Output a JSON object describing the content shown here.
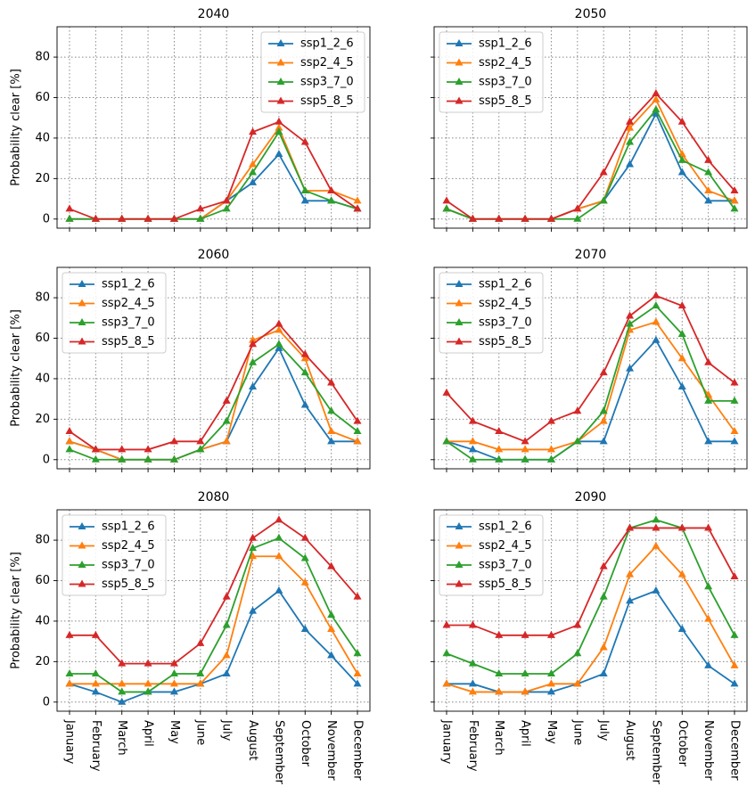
{
  "chart_data": [
    {
      "type": "line",
      "title": "2040",
      "ylabel": "Probability clear [%]",
      "legend": "upper right",
      "ylim": [
        -4.5,
        95
      ],
      "yticks": [
        0,
        20,
        40,
        60,
        80
      ],
      "grid": true,
      "series": [
        {
          "name": "ssp1_2_6",
          "color": "#1f77b4",
          "values": [
            0,
            0,
            0,
            0,
            0,
            0,
            9,
            18,
            32,
            9,
            9,
            5
          ]
        },
        {
          "name": "ssp2_4_5",
          "color": "#ff7f0e",
          "values": [
            0,
            0,
            0,
            0,
            0,
            0,
            9,
            27,
            45,
            14,
            14,
            9
          ]
        },
        {
          "name": "ssp3_7_0",
          "color": "#2ca02c",
          "values": [
            0,
            0,
            0,
            0,
            0,
            0,
            5,
            23,
            43,
            14,
            9,
            5
          ]
        },
        {
          "name": "ssp5_8_5",
          "color": "#d62728",
          "values": [
            5,
            0,
            0,
            0,
            0,
            5,
            9,
            43,
            48,
            38,
            14,
            5
          ]
        }
      ]
    },
    {
      "type": "line",
      "title": "2050",
      "legend": "upper left",
      "ylim": [
        -4.5,
        95
      ],
      "yticks": [
        0,
        20,
        40,
        60,
        80
      ],
      "grid": true,
      "series": [
        {
          "name": "ssp1_2_6",
          "color": "#1f77b4",
          "values": [
            5,
            0,
            0,
            0,
            0,
            5,
            9,
            27,
            52,
            23,
            9,
            9
          ]
        },
        {
          "name": "ssp2_4_5",
          "color": "#ff7f0e",
          "values": [
            5,
            0,
            0,
            0,
            0,
            5,
            9,
            45,
            59,
            32,
            14,
            9
          ]
        },
        {
          "name": "ssp3_7_0",
          "color": "#2ca02c",
          "values": [
            5,
            0,
            0,
            0,
            0,
            0,
            9,
            38,
            54,
            29,
            23,
            5
          ]
        },
        {
          "name": "ssp5_8_5",
          "color": "#d62728",
          "values": [
            9,
            0,
            0,
            0,
            0,
            5,
            23,
            48,
            62,
            48,
            29,
            14
          ]
        }
      ]
    },
    {
      "type": "line",
      "title": "2060",
      "ylabel": "Probability clear [%]",
      "legend": "upper left",
      "ylim": [
        -4.5,
        95
      ],
      "yticks": [
        0,
        20,
        40,
        60,
        80
      ],
      "grid": true,
      "series": [
        {
          "name": "ssp1_2_6",
          "color": "#1f77b4",
          "values": [
            9,
            5,
            0,
            0,
            0,
            5,
            9,
            36,
            55,
            27,
            9,
            9
          ]
        },
        {
          "name": "ssp2_4_5",
          "color": "#ff7f0e",
          "values": [
            9,
            5,
            0,
            0,
            0,
            5,
            9,
            59,
            64,
            50,
            14,
            9
          ]
        },
        {
          "name": "ssp3_7_0",
          "color": "#2ca02c",
          "values": [
            5,
            0,
            0,
            0,
            0,
            5,
            19,
            48,
            57,
            43,
            24,
            14
          ]
        },
        {
          "name": "ssp5_8_5",
          "color": "#d62728",
          "values": [
            14,
            5,
            5,
            5,
            9,
            9,
            29,
            57,
            67,
            52,
            38,
            19
          ]
        }
      ]
    },
    {
      "type": "line",
      "title": "2070",
      "legend": "upper left",
      "ylim": [
        -4.5,
        95
      ],
      "yticks": [
        0,
        20,
        40,
        60,
        80
      ],
      "grid": true,
      "series": [
        {
          "name": "ssp1_2_6",
          "color": "#1f77b4",
          "values": [
            9,
            5,
            0,
            0,
            0,
            9,
            9,
            45,
            59,
            36,
            9,
            9
          ]
        },
        {
          "name": "ssp2_4_5",
          "color": "#ff7f0e",
          "values": [
            9,
            9,
            5,
            5,
            5,
            9,
            19,
            64,
            68,
            50,
            32,
            14
          ]
        },
        {
          "name": "ssp3_7_0",
          "color": "#2ca02c",
          "values": [
            9,
            0,
            0,
            0,
            0,
            9,
            24,
            67,
            76,
            62,
            29,
            29
          ]
        },
        {
          "name": "ssp5_8_5",
          "color": "#d62728",
          "values": [
            33,
            19,
            14,
            9,
            19,
            24,
            43,
            71,
            81,
            76,
            48,
            38
          ]
        }
      ]
    },
    {
      "type": "line",
      "title": "2080",
      "ylabel": "Probability clear [%]",
      "legend": "upper left",
      "categories": [
        "January",
        "February",
        "March",
        "April",
        "May",
        "June",
        "July",
        "August",
        "September",
        "October",
        "November",
        "December"
      ],
      "ylim": [
        -4.5,
        95
      ],
      "yticks": [
        0,
        20,
        40,
        60,
        80
      ],
      "grid": true,
      "series": [
        {
          "name": "ssp1_2_6",
          "color": "#1f77b4",
          "values": [
            9,
            5,
            0,
            5,
            5,
            9,
            14,
            45,
            55,
            36,
            23,
            9
          ]
        },
        {
          "name": "ssp2_4_5",
          "color": "#ff7f0e",
          "values": [
            9,
            9,
            9,
            9,
            9,
            9,
            23,
            72,
            72,
            59,
            36,
            14
          ]
        },
        {
          "name": "ssp3_7_0",
          "color": "#2ca02c",
          "values": [
            14,
            14,
            5,
            5,
            14,
            14,
            38,
            76,
            81,
            71,
            43,
            24
          ]
        },
        {
          "name": "ssp5_8_5",
          "color": "#d62728",
          "values": [
            33,
            33,
            19,
            19,
            19,
            29,
            52,
            81,
            90,
            81,
            67,
            52
          ]
        }
      ]
    },
    {
      "type": "line",
      "title": "2090",
      "legend": "upper left",
      "categories": [
        "January",
        "February",
        "March",
        "April",
        "May",
        "June",
        "July",
        "August",
        "September",
        "October",
        "November",
        "December"
      ],
      "ylim": [
        -4.5,
        95
      ],
      "yticks": [
        0,
        20,
        40,
        60,
        80
      ],
      "grid": true,
      "series": [
        {
          "name": "ssp1_2_6",
          "color": "#1f77b4",
          "values": [
            9,
            9,
            5,
            5,
            5,
            9,
            14,
            50,
            55,
            36,
            18,
            9
          ]
        },
        {
          "name": "ssp2_4_5",
          "color": "#ff7f0e",
          "values": [
            9,
            5,
            5,
            5,
            9,
            9,
            27,
            63,
            77,
            63,
            41,
            18
          ]
        },
        {
          "name": "ssp3_7_0",
          "color": "#2ca02c",
          "values": [
            24,
            19,
            14,
            14,
            14,
            24,
            52,
            86,
            90,
            86,
            57,
            33
          ]
        },
        {
          "name": "ssp5_8_5",
          "color": "#d62728",
          "values": [
            38,
            38,
            33,
            33,
            33,
            38,
            67,
            86,
            86,
            86,
            86,
            62
          ]
        }
      ]
    }
  ]
}
